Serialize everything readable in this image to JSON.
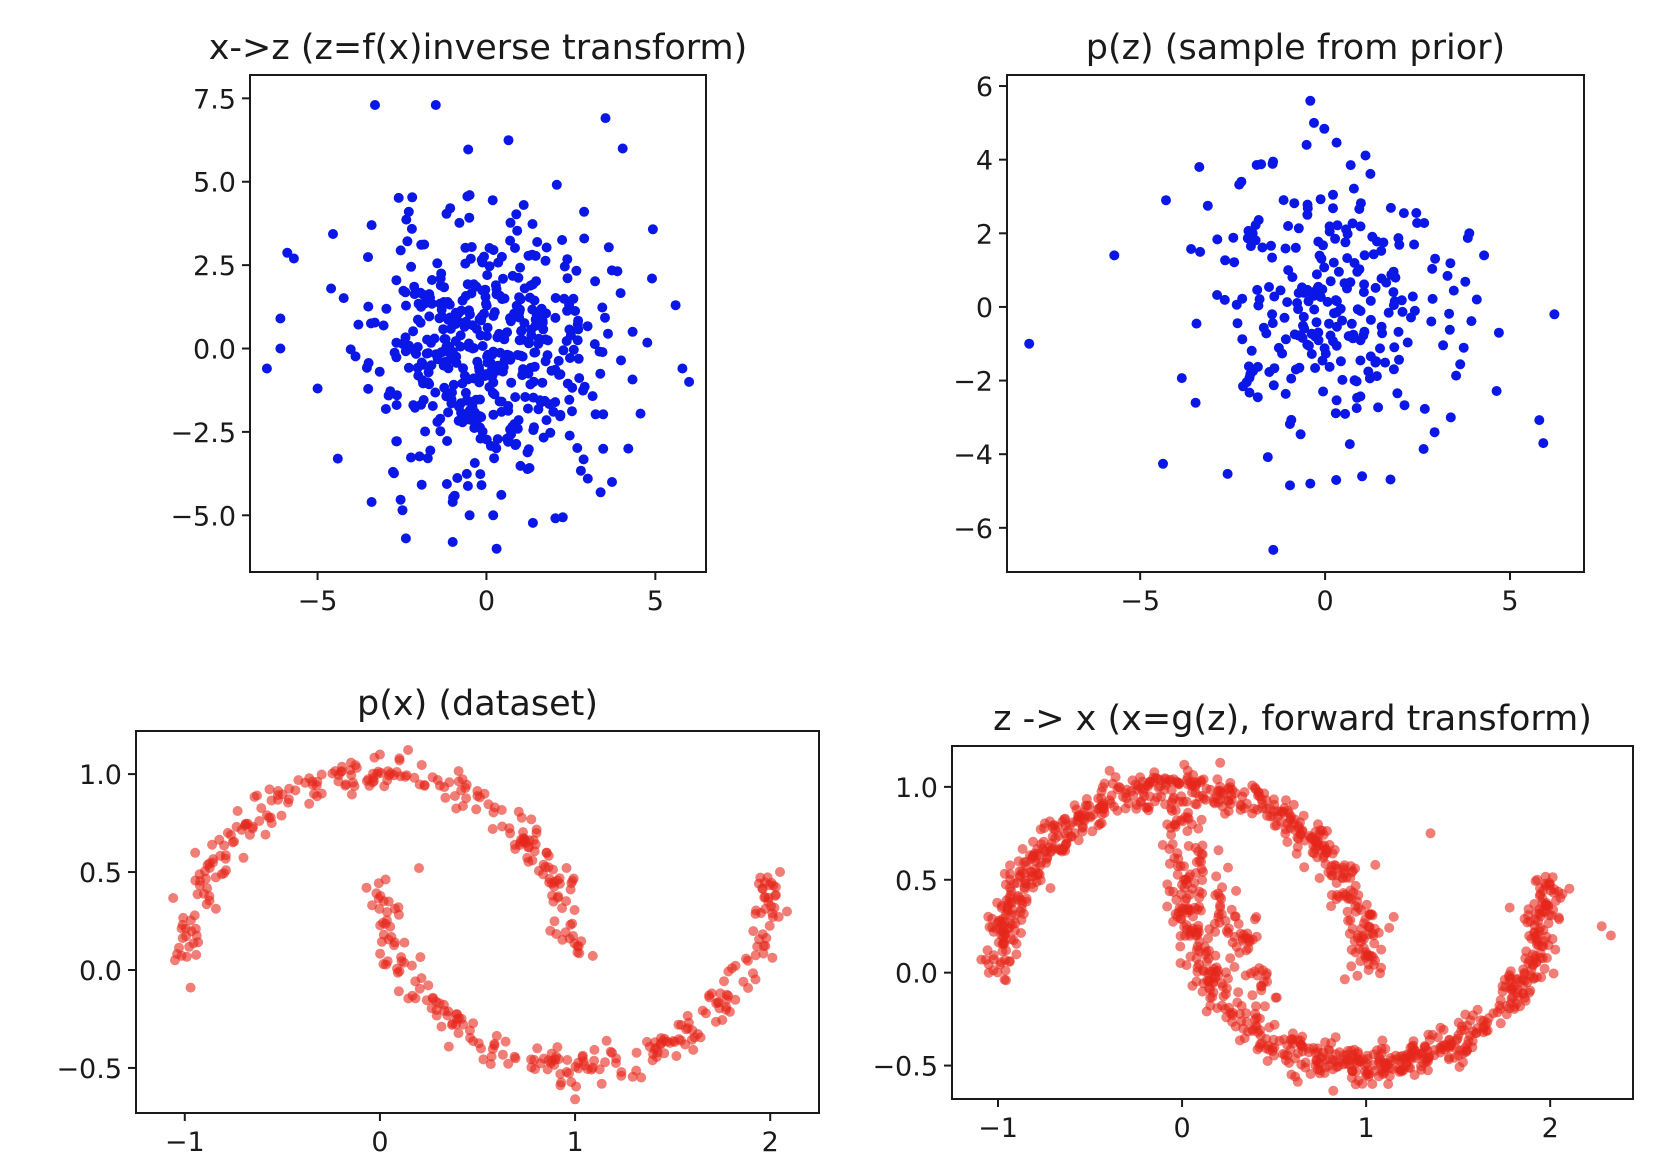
{
  "chart_data": [
    {
      "id": "inverse",
      "type": "scatter",
      "title": "x->z (z=f(x)inverse transform)",
      "xlim": [
        -7.0,
        6.5
      ],
      "ylim": [
        -6.7,
        8.2
      ],
      "xticks": [
        -5,
        0,
        5
      ],
      "yticks": [
        -5.0,
        -2.5,
        0.0,
        2.5,
        5.0,
        7.5
      ],
      "xtick_labels": [
        "−5",
        "0",
        "5"
      ],
      "ytick_labels": [
        "−5.0",
        "−2.5",
        "0.0",
        "2.5",
        "5.0",
        "7.5"
      ],
      "point_color": "#0a17e6",
      "point_opacity": 1.0,
      "grid": false,
      "generator": {
        "kind": "gaussian",
        "n": 480,
        "sx": 1.7,
        "sy": 2.0,
        "seed": 11
      },
      "points": [
        [
          -3.3,
          7.3
        ],
        [
          -1.5,
          7.3
        ],
        [
          -0.5,
          4.6
        ],
        [
          -2.3,
          4.1
        ],
        [
          -3.4,
          3.7
        ],
        [
          -5.7,
          2.7
        ],
        [
          -6.1,
          0.9
        ],
        [
          -6.1,
          0.0
        ],
        [
          -6.5,
          -0.6
        ],
        [
          -4.6,
          1.8
        ],
        [
          -5.0,
          -1.2
        ],
        [
          -4.4,
          -3.3
        ],
        [
          -3.4,
          -4.6
        ],
        [
          -1.0,
          -4.6
        ],
        [
          -1.0,
          -5.8
        ],
        [
          0.3,
          -6.0
        ],
        [
          0.2,
          -5.0
        ],
        [
          4.2,
          -3.0
        ],
        [
          4.9,
          2.1
        ],
        [
          5.6,
          1.3
        ],
        [
          5.8,
          -0.6
        ],
        [
          6.0,
          -1.0
        ],
        [
          3.0,
          -3.9
        ],
        [
          -0.5,
          -5.0
        ]
      ]
    },
    {
      "id": "prior",
      "type": "scatter",
      "title": "p(z) (sample from prior)",
      "xlim": [
        -8.6,
        7.0
      ],
      "ylim": [
        -7.2,
        6.3
      ],
      "xticks": [
        -5,
        0,
        5
      ],
      "yticks": [
        -6,
        -4,
        -2,
        0,
        2,
        4,
        6
      ],
      "xtick_labels": [
        "−5",
        "0",
        "5"
      ],
      "ytick_labels": [
        "−6",
        "−4",
        "−2",
        "0",
        "2",
        "4",
        "6"
      ],
      "point_color": "#0a17e6",
      "point_opacity": 1.0,
      "grid": false,
      "generator": {
        "kind": "gaussian",
        "n": 260,
        "sx": 1.7,
        "sy": 1.9,
        "seed": 23
      },
      "points": [
        [
          -0.4,
          5.6
        ],
        [
          -0.3,
          5.0
        ],
        [
          -0.5,
          4.4
        ],
        [
          -3.4,
          3.8
        ],
        [
          -4.3,
          2.9
        ],
        [
          -5.7,
          1.4
        ],
        [
          -8.0,
          -1.0
        ],
        [
          6.2,
          -0.2
        ],
        [
          4.7,
          -0.7
        ],
        [
          5.9,
          -3.7
        ],
        [
          3.4,
          -3.0
        ],
        [
          -3.5,
          -2.6
        ],
        [
          -1.4,
          -6.6
        ],
        [
          -0.4,
          -4.8
        ],
        [
          0.3,
          -4.7
        ],
        [
          1.0,
          -4.6
        ],
        [
          4.3,
          1.4
        ],
        [
          3.9,
          2.0
        ]
      ]
    },
    {
      "id": "dataset",
      "type": "scatter",
      "title": "p(x) (dataset)",
      "xlim": [
        -1.25,
        2.25
      ],
      "ylim": [
        -0.73,
        1.22
      ],
      "xticks": [
        -1,
        0,
        1,
        2
      ],
      "yticks": [
        -0.5,
        0.0,
        0.5,
        1.0
      ],
      "xtick_labels": [
        "−1",
        "0",
        "1",
        "2"
      ],
      "ytick_labels": [
        "−0.5",
        "0.0",
        "0.5",
        "1.0"
      ],
      "point_color": "#e6261a",
      "point_opacity": 0.6,
      "grid": false,
      "generator": {
        "kind": "moons",
        "n": 480,
        "noise": 0.045,
        "seed": 5
      },
      "points": [
        [
          0.0,
          1.1
        ],
        [
          0.1,
          1.08
        ],
        [
          -1.05,
          0.05
        ],
        [
          -0.97,
          -0.09
        ],
        [
          2.05,
          0.5
        ],
        [
          1.0,
          -0.66
        ],
        [
          0.2,
          0.52
        ]
      ]
    },
    {
      "id": "forward",
      "type": "scatter",
      "title": "z -> x (x=g(z), forward transform)",
      "xlim": [
        -1.25,
        2.45
      ],
      "ylim": [
        -0.68,
        1.22
      ],
      "xticks": [
        -1,
        0,
        1,
        2
      ],
      "yticks": [
        -0.5,
        0.0,
        0.5,
        1.0
      ],
      "xtick_labels": [
        "−1",
        "0",
        "1",
        "2"
      ],
      "ytick_labels": [
        "−0.5",
        "0.0",
        "0.5",
        "1.0"
      ],
      "point_color": "#e6261a",
      "point_opacity": 0.6,
      "grid": false,
      "generator": {
        "kind": "moons",
        "n": 1100,
        "noise": 0.05,
        "seed": 9,
        "bridge": 120
      },
      "points": [
        [
          1.35,
          0.75
        ],
        [
          1.05,
          0.58
        ],
        [
          2.28,
          0.25
        ],
        [
          2.33,
          0.2
        ],
        [
          1.78,
          0.35
        ],
        [
          -1.05,
          0.0
        ],
        [
          1.15,
          0.3
        ],
        [
          1.12,
          -0.6
        ]
      ]
    }
  ]
}
